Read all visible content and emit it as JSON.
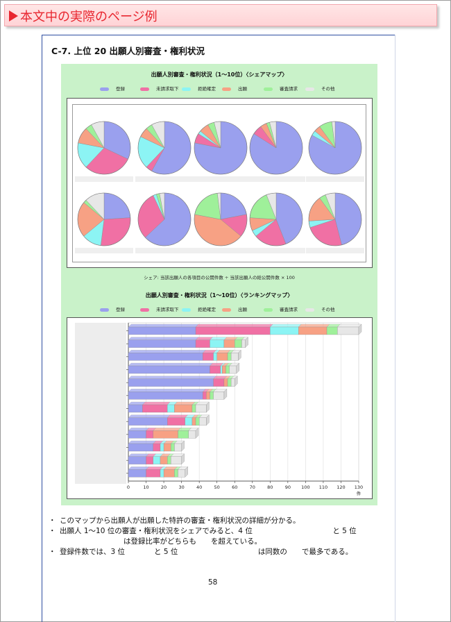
{
  "banner": {
    "title": "本文中の実際のページ例"
  },
  "section": {
    "title": "C-7.  上位 20 出願人別審査・権利状況"
  },
  "legend": [
    {
      "label": "登録",
      "color": "#9aa0ee"
    },
    {
      "label": "未請求取下",
      "color": "#f070a4"
    },
    {
      "label": "拒絶確定",
      "color": "#8cf4f4"
    },
    {
      "label": "出願",
      "color": "#f7a184"
    },
    {
      "label": "審査請求",
      "color": "#9ff09a"
    },
    {
      "label": "その他",
      "color": "#e7e7e7"
    }
  ],
  "share_note": "シェア: 当該出願人の各項目の公開件数 ÷ 当該出願人の総公開件数 × 100",
  "page_number": "58",
  "bullets": [
    "このマップから出願人が出願した特許の審査・権利状況の詳細が分かる。",
    "出願人 1〜10 位の審査・権利状況をシェアでみると、4 位　　　　　　　　　　　と 5 位",
    "は登録比率がどちらも　　を超えている。",
    "登録件数では、3 位　　　　と 5 位　　　　　　　　　　　は同数の　　で最多である。"
  ],
  "chart_data": [
    {
      "type": "pie",
      "title": "出願人別審査・権利状況（1〜10位）〈シェアマップ〉",
      "series_names": [
        "登録",
        "未請求取下",
        "拒絶確定",
        "出願",
        "審査請求",
        "その他"
      ],
      "colors": [
        "#9aa0ee",
        "#f070a4",
        "#8cf4f4",
        "#f7a184",
        "#9ff09a",
        "#e7e7e7"
      ],
      "pies": [
        {
          "values": [
            32,
            30,
            16,
            10,
            4,
            8
          ]
        },
        {
          "values": [
            58,
            4,
            20,
            6,
            4,
            8
          ]
        },
        {
          "values": [
            78,
            6,
            2,
            6,
            4,
            4
          ]
        },
        {
          "values": [
            84,
            6,
            0,
            4,
            2,
            4
          ]
        },
        {
          "values": [
            83,
            0,
            3,
            4,
            8,
            2
          ]
        },
        {
          "values": [
            24,
            28,
            12,
            22,
            2,
            12
          ]
        },
        {
          "values": [
            63,
            30,
            2,
            0,
            2,
            3
          ]
        },
        {
          "values": [
            22,
            14,
            0,
            42,
            20,
            2
          ]
        },
        {
          "values": [
            44,
            20,
            4,
            8,
            18,
            6
          ]
        },
        {
          "values": [
            46,
            24,
            4,
            16,
            4,
            6
          ]
        }
      ]
    },
    {
      "type": "bar",
      "title": "出願人別審査・権利状況（1〜10位）〈ランキングマップ〉",
      "series_names": [
        "登録",
        "未請求取下",
        "拒絶確定",
        "出願",
        "審査請求",
        "その他"
      ],
      "colors": [
        "#9aa0ee",
        "#f070a4",
        "#8cf4f4",
        "#f7a184",
        "#9ff09a",
        "#e7e7e7"
      ],
      "xlim": [
        0,
        130
      ],
      "xticks": [
        0,
        10,
        20,
        30,
        40,
        50,
        60,
        70,
        80,
        90,
        100,
        110,
        120,
        130
      ],
      "xunit": "件",
      "rows": [
        [
          38,
          42,
          16,
          16,
          6,
          12
        ],
        [
          38,
          8,
          8,
          6,
          4,
          2
        ],
        [
          42,
          6,
          2,
          6,
          2,
          4
        ],
        [
          46,
          6,
          1,
          2,
          2,
          4
        ],
        [
          48,
          6,
          0,
          2,
          2,
          2
        ],
        [
          42,
          2,
          0,
          2,
          2,
          6
        ],
        [
          8,
          14,
          4,
          10,
          2,
          6
        ],
        [
          22,
          10,
          4,
          2,
          2,
          4
        ],
        [
          10,
          4,
          0,
          14,
          6,
          4
        ],
        [
          14,
          4,
          2,
          4,
          2,
          4
        ],
        [
          10,
          4,
          4,
          4,
          2,
          6
        ],
        [
          10,
          8,
          2,
          6,
          2,
          4
        ]
      ]
    }
  ]
}
